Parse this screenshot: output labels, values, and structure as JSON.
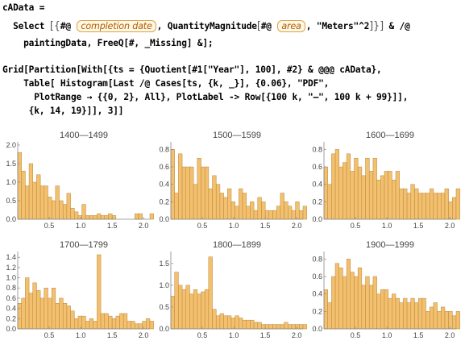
{
  "code": {
    "line1": "cAData =",
    "line2_a": "  Select",
    "line2_b": "#@",
    "token1": "completion date",
    "line2_c": ", QuantityMagnitude",
    "line2_d": "#@",
    "token2": "area",
    "line2_e": ", \"Meters\"^2",
    "line2_f": "& /@",
    "line3": "    paintingData, FreeQ[#, _Missing] &];",
    "line4": "Grid[Partition[With[{ts = {Quotient[#1[\"Year\"], 100], #2} & @@@ cAData},",
    "line5": "    Table[ Histogram[Last /@ Cases[ts, {k, _}], {0.06}, \"PDF\",",
    "line6": "      PlotRange → {{0, 2}, All}, PlotLabel -> Row[{100 k, \"—\", 100 k + 99}]],",
    "line7": "     {k, 14, 19}]], 3]]"
  },
  "colors": {
    "bar": "#f2c06e",
    "bar_edge": "#b8863a",
    "axis": "#888888"
  },
  "chart_data": [
    {
      "type": "bar",
      "title": "1400—1499",
      "bin_width": 0.06,
      "xlim": [
        0,
        2.1
      ],
      "ylim": [
        0,
        2.0
      ],
      "xticks": [
        "0.5",
        "1.0",
        "1.5",
        "2.0"
      ],
      "yticks": [
        "0.0",
        "0.5",
        "1.0",
        "1.5",
        "2.0"
      ],
      "values": [
        1.8,
        1.3,
        0.9,
        1.5,
        1.0,
        1.2,
        0.9,
        0.9,
        0.6,
        0.5,
        0.9,
        0.5,
        0.4,
        0.7,
        0.3,
        0.2,
        0.1,
        0.4,
        0.1,
        0.1,
        0.1,
        0.15,
        0.1,
        0.1,
        0.15,
        0.1,
        0,
        0,
        0,
        0,
        0,
        0.15,
        0.15,
        0,
        0,
        0.15
      ]
    },
    {
      "type": "bar",
      "title": "1500—1599",
      "bin_width": 0.06,
      "xlim": [
        0,
        2.1
      ],
      "ylim": [
        0,
        0.85
      ],
      "xticks": [
        "0.5",
        "1.0",
        "1.5",
        "2.0"
      ],
      "yticks": [
        "0.0",
        "0.2",
        "0.4",
        "0.6",
        "0.8"
      ],
      "values": [
        0.8,
        0.3,
        0.75,
        0.6,
        0.6,
        0.6,
        0.4,
        0.7,
        0.6,
        0.6,
        0.35,
        0.5,
        0.4,
        0.3,
        0.25,
        0.35,
        0.2,
        0.15,
        0.35,
        0.3,
        0.15,
        0.2,
        0.1,
        0.25,
        0.2,
        0.1,
        0.1,
        0.1,
        0.15,
        0.3,
        0.2,
        0.15,
        0.1,
        0.2,
        0.1,
        0.15
      ]
    },
    {
      "type": "bar",
      "title": "1600—1699",
      "bin_width": 0.06,
      "xlim": [
        0,
        2.1
      ],
      "ylim": [
        0,
        0.85
      ],
      "xticks": [
        "0.5",
        "1.0",
        "1.5",
        "2.0"
      ],
      "yticks": [
        "0.0",
        "0.2",
        "0.4",
        "0.6",
        "0.8"
      ],
      "values": [
        0.6,
        0.4,
        0.75,
        0.8,
        0.6,
        0.65,
        0.75,
        0.55,
        0.7,
        0.6,
        0.5,
        0.7,
        0.55,
        0.7,
        0.45,
        0.5,
        0.55,
        0.55,
        0.45,
        0.55,
        0.35,
        0.35,
        0.3,
        0.4,
        0.35,
        0.3,
        0.3,
        0.3,
        0.35,
        0.3,
        0.3,
        0.3,
        0.35,
        0.2,
        0.25,
        0.35
      ]
    },
    {
      "type": "bar",
      "title": "1700—1799",
      "bin_width": 0.06,
      "xlim": [
        0,
        2.1
      ],
      "ylim": [
        0,
        1.45
      ],
      "xticks": [
        "0.5",
        "1.0",
        "1.5",
        "2.0"
      ],
      "yticks": [
        "0.0",
        "0.2",
        "0.4",
        "0.6",
        "0.8",
        "1.0",
        "1.2",
        "1.4"
      ],
      "values": [
        0.5,
        0.6,
        1.0,
        0.7,
        0.9,
        0.75,
        0.6,
        0.8,
        0.6,
        0.8,
        0.5,
        0.6,
        0.5,
        0.45,
        0.35,
        0.2,
        0.25,
        0.25,
        0.15,
        0.2,
        0.15,
        1.45,
        0.3,
        0.3,
        0.25,
        0.2,
        0.25,
        0.3,
        0.3,
        0.15,
        0.15,
        0.1,
        0.1,
        0.15,
        0.2,
        0.15
      ]
    },
    {
      "type": "bar",
      "title": "1800—1899",
      "bin_width": 0.06,
      "xlim": [
        0,
        2.1
      ],
      "ylim": [
        0,
        1.7
      ],
      "xticks": [
        "0.5",
        "1.0",
        "1.5",
        "2.0"
      ],
      "yticks": [
        "0.0",
        "0.5",
        "1.0",
        "1.5"
      ],
      "values": [
        0.75,
        1.3,
        1.0,
        0.9,
        1.0,
        0.8,
        0.9,
        0.8,
        0.85,
        0.9,
        1.65,
        0.45,
        0.3,
        0.35,
        0.3,
        0.3,
        0.25,
        0.3,
        0.25,
        0.2,
        0.2,
        0.2,
        0.15,
        0.15,
        0.1,
        0.1,
        0.1,
        0.1,
        0.1,
        0.1,
        0.15,
        0.1,
        0.1,
        0.1,
        0.1,
        0.1
      ]
    },
    {
      "type": "bar",
      "title": "1900—1999",
      "bin_width": 0.06,
      "xlim": [
        0,
        2.1
      ],
      "ylim": [
        0,
        0.85
      ],
      "xticks": [
        "0.5",
        "1.0",
        "1.5",
        "2.0"
      ],
      "yticks": [
        "0.0",
        "0.2",
        "0.4",
        "0.6",
        "0.8"
      ],
      "values": [
        0.45,
        0.3,
        0.6,
        0.75,
        0.7,
        0.6,
        0.8,
        0.65,
        0.6,
        0.7,
        0.5,
        0.6,
        0.5,
        0.6,
        0.4,
        0.45,
        0.45,
        0.35,
        0.4,
        0.35,
        0.3,
        0.35,
        0.3,
        0.35,
        0.3,
        0.35,
        0.35,
        0.2,
        0.25,
        0.3,
        0.2,
        0.25,
        0.2,
        0.2,
        0.15,
        0.2
      ]
    }
  ]
}
